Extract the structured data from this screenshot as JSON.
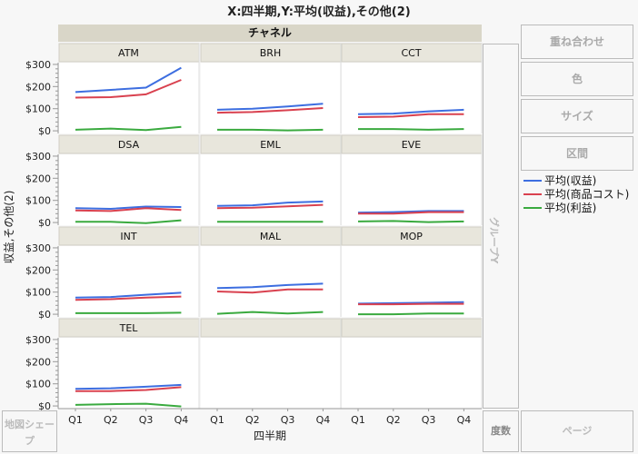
{
  "title": "X:四半期,Y:平均(収益),その他(2)",
  "header": "チャネル",
  "zones": {
    "group_y": "グループY",
    "map_shape": "地図シェープ",
    "freq": "度数",
    "page": "ページ"
  },
  "buttons": [
    "重ね合わせ",
    "色",
    "サイズ",
    "区間"
  ],
  "chart_data": {
    "type": "line",
    "xlabel": "四半期",
    "ylabel": "収益,その他(2)",
    "categories": [
      "Q1",
      "Q2",
      "Q3",
      "Q4"
    ],
    "yticks": [
      "$0",
      "$100",
      "$200",
      "$300"
    ],
    "ytick_values": [
      0,
      100,
      200,
      300
    ],
    "ylim": [
      -12,
      308
    ],
    "grid": false,
    "legend_position": "right",
    "series_names": [
      "平均(収益)",
      "平均(商品コスト)",
      "平均(利益)"
    ],
    "series_colors": [
      "#3d6ee0",
      "#d9414f",
      "#3aaa3f"
    ],
    "panels": [
      {
        "label": "ATM",
        "series": [
          [
            175,
            185,
            195,
            285
          ],
          [
            150,
            152,
            165,
            230
          ],
          [
            5,
            10,
            3,
            18
          ]
        ]
      },
      {
        "label": "BRH",
        "series": [
          [
            95,
            100,
            110,
            122
          ],
          [
            82,
            85,
            93,
            103
          ],
          [
            5,
            5,
            2,
            5
          ]
        ]
      },
      {
        "label": "CCT",
        "series": [
          [
            75,
            78,
            88,
            95
          ],
          [
            62,
            64,
            75,
            75
          ],
          [
            8,
            8,
            5,
            8
          ]
        ]
      },
      {
        "label": "DSA",
        "series": [
          [
            65,
            62,
            72,
            70
          ],
          [
            55,
            52,
            65,
            57
          ],
          [
            3,
            3,
            -3,
            10
          ]
        ]
      },
      {
        "label": "EML",
        "series": [
          [
            75,
            78,
            90,
            95
          ],
          [
            65,
            67,
            73,
            80
          ],
          [
            3,
            3,
            3,
            3
          ]
        ]
      },
      {
        "label": "EVE",
        "series": [
          [
            45,
            47,
            52,
            52
          ],
          [
            40,
            40,
            47,
            47
          ],
          [
            5,
            7,
            2,
            5
          ]
        ]
      },
      {
        "label": "INT",
        "series": [
          [
            75,
            78,
            88,
            97
          ],
          [
            65,
            68,
            75,
            80
          ],
          [
            5,
            5,
            5,
            7
          ]
        ]
      },
      {
        "label": "MAL",
        "series": [
          [
            118,
            122,
            132,
            138
          ],
          [
            103,
            98,
            112,
            112
          ],
          [
            2,
            10,
            3,
            10
          ]
        ]
      },
      {
        "label": "MOP",
        "series": [
          [
            48,
            50,
            52,
            55
          ],
          [
            45,
            45,
            47,
            47
          ],
          [
            0,
            0,
            3,
            3
          ]
        ]
      },
      {
        "label": "TEL",
        "series": [
          [
            77,
            80,
            87,
            95
          ],
          [
            67,
            67,
            72,
            85
          ],
          [
            5,
            8,
            10,
            -2
          ]
        ]
      }
    ]
  }
}
